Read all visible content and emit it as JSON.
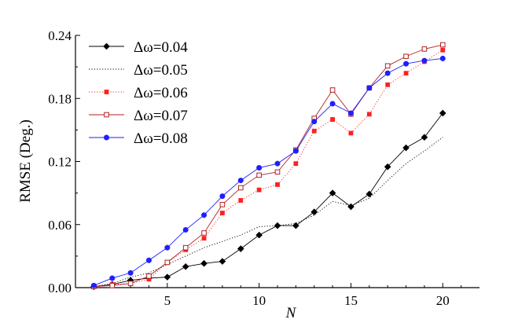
{
  "chart_data": {
    "type": "line",
    "xlabel": "N",
    "ylabel": "RMSE (Deg.)",
    "xlim": [
      0,
      22
    ],
    "ylim": [
      0,
      0.24
    ],
    "xticks": [
      5,
      10,
      15,
      20
    ],
    "xtick_labels": [
      "5",
      "10",
      "15",
      "20"
    ],
    "yticks": [
      0,
      0.06,
      0.12,
      0.18,
      0.24
    ],
    "ytick_labels": [
      "0.00",
      "0.06",
      "0.12",
      "0.18",
      "0.24"
    ],
    "grid": false,
    "legend_position": "top-left",
    "x": [
      1,
      2,
      3,
      4,
      5,
      6,
      7,
      8,
      9,
      10,
      11,
      12,
      13,
      14,
      15,
      16,
      17,
      18,
      19,
      20
    ],
    "series": [
      {
        "name": "Δω=0.04",
        "color": "#000000",
        "line_style": "solid",
        "marker": "diamond",
        "values": [
          0.001,
          0.003,
          0.007,
          0.009,
          0.01,
          0.02,
          0.023,
          0.025,
          0.037,
          0.05,
          0.059,
          0.059,
          0.072,
          0.09,
          0.077,
          0.089,
          0.115,
          0.133,
          0.143,
          0.166
        ]
      },
      {
        "name": "Δω=0.05",
        "color": "#000000",
        "line_style": "dotted",
        "marker": "none",
        "values": [
          0.001,
          0.004,
          0.01,
          0.014,
          0.022,
          0.03,
          0.038,
          0.044,
          0.05,
          0.058,
          0.059,
          0.061,
          0.069,
          0.082,
          0.078,
          0.085,
          0.102,
          0.118,
          0.13,
          0.143
        ]
      },
      {
        "name": "Δω=0.06",
        "color": "#ff2020",
        "line_style": "dotted",
        "marker": "square-filled",
        "values": [
          0.001,
          0.003,
          0.004,
          0.008,
          0.024,
          0.036,
          0.047,
          0.071,
          0.083,
          0.093,
          0.098,
          0.118,
          0.149,
          0.16,
          0.147,
          0.165,
          0.193,
          0.204,
          0.215,
          0.226
        ]
      },
      {
        "name": "Δω=0.07",
        "color": "#b22222",
        "line_style": "solid",
        "marker": "square-open",
        "values": [
          0.001,
          0.002,
          0.004,
          0.011,
          0.024,
          0.038,
          0.052,
          0.079,
          0.095,
          0.107,
          0.11,
          0.131,
          0.161,
          0.188,
          0.165,
          0.19,
          0.211,
          0.22,
          0.227,
          0.231
        ]
      },
      {
        "name": "Δω=0.08",
        "color": "#1f1fff",
        "line_style": "solid",
        "marker": "circle",
        "values": [
          0.002,
          0.009,
          0.014,
          0.026,
          0.038,
          0.055,
          0.069,
          0.087,
          0.102,
          0.114,
          0.118,
          0.13,
          0.158,
          0.175,
          0.166,
          0.19,
          0.204,
          0.213,
          0.216,
          0.218
        ]
      }
    ]
  }
}
